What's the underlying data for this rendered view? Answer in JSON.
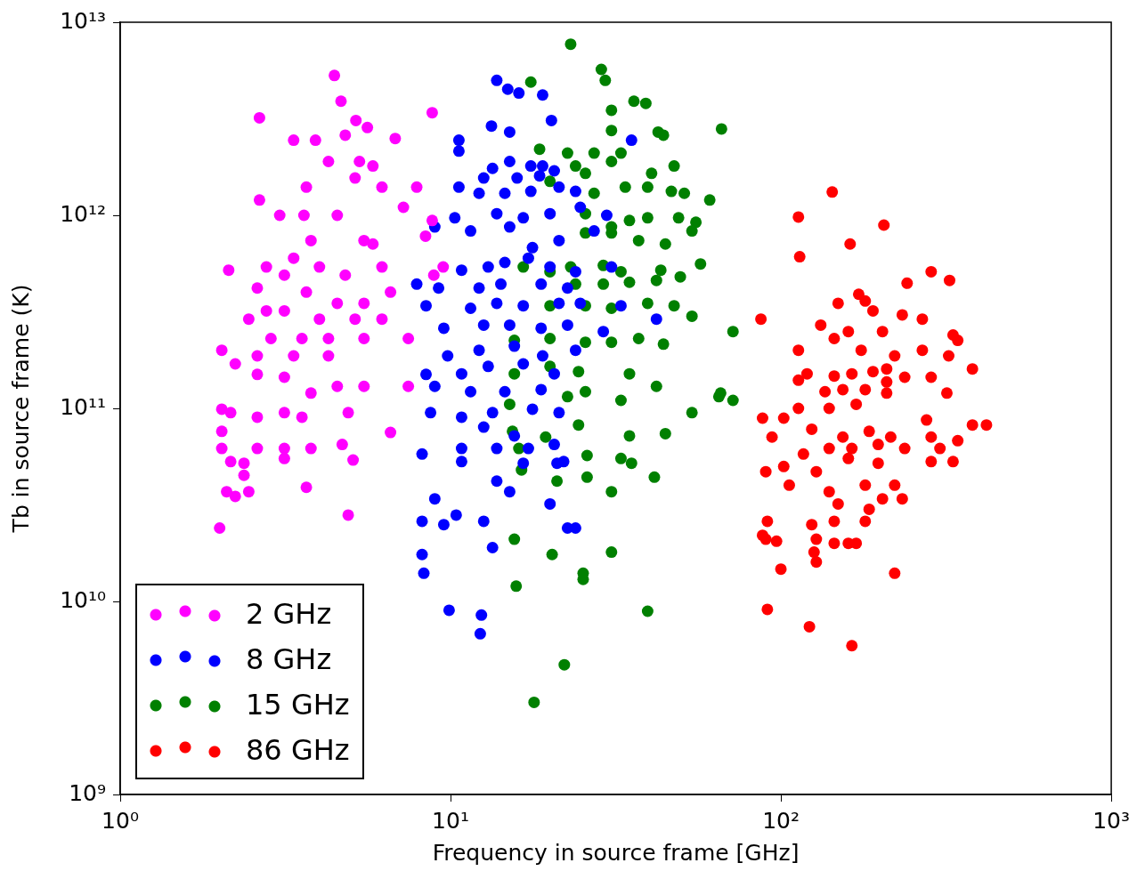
{
  "chart_data": {
    "type": "scatter",
    "xlabel": "Frequency in source frame [GHz]",
    "ylabel": "Tb in source frame (K)",
    "log": "xy",
    "grid": false,
    "legend": "bottom left",
    "marker": "circle",
    "xlim": [
      1,
      1000
    ],
    "xticks": [
      {
        "value": 1,
        "label": "10⁰"
      },
      {
        "value": 10,
        "label": "10¹"
      },
      {
        "value": 100,
        "label": "10²"
      },
      {
        "value": 1000,
        "label": "10³"
      }
    ],
    "ylim": [
      1000000000.0,
      10000000000000.0
    ],
    "yticks": [
      {
        "value": 1000000000.0,
        "label": "10⁹"
      },
      {
        "value": 10000000000.0,
        "label": "10¹⁰"
      },
      {
        "value": 100000000000.0,
        "label": "10¹¹"
      },
      {
        "value": 1000000000000.0,
        "label": "10¹²"
      },
      {
        "value": 10000000000000.0,
        "label": "10¹³"
      }
    ],
    "series": [
      {
        "name": "2 GHz",
        "color": "#ff00ff",
        "x": [
          4.45,
          2.64,
          3.35,
          3.9,
          4.66,
          5.17,
          4.8,
          6.8,
          8.8,
          5.6,
          5.3,
          5.82,
          5.14,
          4.27,
          3.66,
          6.2,
          7.9,
          7.2,
          2.64,
          2.13,
          3.04,
          3.6,
          4.54,
          5.47,
          5.82,
          3.78,
          3.35,
          2.77,
          3.14,
          4.01,
          4.8,
          6.2,
          2.6,
          3.66,
          4.54,
          5.47,
          6.58,
          8.9,
          2.77,
          3.14,
          4.01,
          5.14,
          6.2,
          2.45,
          2.86,
          3.55,
          4.27,
          5.47,
          7.45,
          2.6,
          3.35,
          4.27,
          2.03,
          2.23,
          2.6,
          3.14,
          3.78,
          4.54,
          5.47,
          7.45,
          2.03,
          2.16,
          3.14,
          3.55,
          4.9,
          2.03,
          2.6,
          2.03,
          2.6,
          3.14,
          3.78,
          4.7,
          6.58,
          2.16,
          2.37,
          3.14,
          5.07,
          3.66,
          2.37,
          2.1,
          2.23,
          2.45,
          2.0,
          4.9,
          8.8,
          8.4,
          9.5
        ],
        "values": [
          5300000000000.0,
          3200000000000.0,
          2450000000000.0,
          2450000000000.0,
          3900000000000.0,
          3100000000000.0,
          2600000000000.0,
          2500000000000.0,
          3400000000000.0,
          2850000000000.0,
          1900000000000.0,
          1800000000000.0,
          1560000000000.0,
          1900000000000.0,
          1400000000000.0,
          1400000000000.0,
          1400000000000.0,
          1100000000000.0,
          1200000000000.0,
          520000000000.0,
          1000000000000.0,
          1000000000000.0,
          1000000000000.0,
          740000000000.0,
          710000000000.0,
          740000000000.0,
          600000000000.0,
          540000000000.0,
          490000000000.0,
          540000000000.0,
          490000000000.0,
          540000000000.0,
          420000000000.0,
          400000000000.0,
          350000000000.0,
          350000000000.0,
          400000000000.0,
          490000000000.0,
          320000000000.0,
          320000000000.0,
          290000000000.0,
          290000000000.0,
          290000000000.0,
          290000000000.0,
          230000000000.0,
          230000000000.0,
          230000000000.0,
          230000000000.0,
          230000000000.0,
          187000000000.0,
          187000000000.0,
          187000000000.0,
          200000000000.0,
          170000000000.0,
          150000000000.0,
          145000000000.0,
          120000000000.0,
          130000000000.0,
          130000000000.0,
          130000000000.0,
          99000000000.0,
          95000000000.0,
          95000000000.0,
          90000000000.0,
          95000000000.0,
          76000000000.0,
          90000000000.0,
          62000000000.0,
          62000000000.0,
          62000000000.0,
          62000000000.0,
          65000000000.0,
          75000000000.0,
          53000000000.0,
          52000000000.0,
          55000000000.0,
          54000000000.0,
          39000000000.0,
          45000000000.0,
          37000000000.0,
          35000000000.0,
          37000000000.0,
          24000000000.0,
          28000000000.0,
          940000000000.0,
          780000000000.0,
          540000000000.0
        ]
      },
      {
        "name": "8 GHz",
        "color": "#0000ff",
        "x": [
          13.8,
          14.9,
          16.1,
          19.0,
          20.2,
          13.3,
          15.1,
          10.6,
          10.6,
          13.4,
          15.1,
          17.5,
          19.0,
          20.6,
          12.6,
          15.9,
          18.6,
          10.6,
          12.2,
          14.6,
          17.5,
          21.3,
          23.9,
          29.7,
          35.3,
          10.3,
          13.8,
          16.6,
          20.0,
          24.7,
          8.96,
          11.5,
          15.1,
          17.7,
          21.3,
          27.2,
          10.8,
          13.0,
          14.6,
          17.2,
          20.0,
          23.9,
          30.7,
          7.9,
          9.2,
          12.2,
          14.2,
          18.8,
          22.6,
          8.43,
          11.5,
          13.8,
          16.6,
          21.3,
          24.7,
          32.8,
          42.0,
          9.54,
          12.6,
          15.1,
          18.8,
          22.6,
          29.0,
          9.8,
          12.2,
          15.6,
          19.0,
          23.9,
          8.43,
          10.8,
          13.0,
          16.6,
          20.6,
          8.96,
          11.5,
          14.6,
          18.8,
          8.7,
          10.8,
          13.4,
          17.7,
          21.3,
          12.6,
          15.6,
          10.8,
          13.8,
          17.2,
          20.6,
          22.0,
          8.2,
          10.8,
          16.6,
          21.0,
          13.8,
          15.1,
          8.96,
          8.2,
          10.4,
          9.54,
          12.6,
          13.4,
          20.0,
          22.6,
          23.9,
          8.2,
          8.3,
          9.9,
          12.4,
          12.3
        ],
        "values": [
          5000000000000.0,
          4500000000000.0,
          4300000000000.0,
          4200000000000.0,
          3100000000000.0,
          2900000000000.0,
          2700000000000.0,
          2450000000000.0,
          2150000000000.0,
          1750000000000.0,
          1900000000000.0,
          1800000000000.0,
          1800000000000.0,
          1700000000000.0,
          1560000000000.0,
          1560000000000.0,
          1600000000000.0,
          1400000000000.0,
          1300000000000.0,
          1300000000000.0,
          1330000000000.0,
          1400000000000.0,
          1330000000000.0,
          1000000000000.0,
          2450000000000.0,
          970000000000.0,
          1020000000000.0,
          970000000000.0,
          1020000000000.0,
          1100000000000.0,
          870000000000.0,
          830000000000.0,
          870000000000.0,
          680000000000.0,
          740000000000.0,
          830000000000.0,
          520000000000.0,
          540000000000.0,
          570000000000.0,
          600000000000.0,
          540000000000.0,
          510000000000.0,
          540000000000.0,
          440000000000.0,
          420000000000.0,
          420000000000.0,
          440000000000.0,
          440000000000.0,
          420000000000.0,
          340000000000.0,
          330000000000.0,
          350000000000.0,
          340000000000.0,
          350000000000.0,
          350000000000.0,
          340000000000.0,
          290000000000.0,
          260000000000.0,
          270000000000.0,
          270000000000.0,
          260000000000.0,
          270000000000.0,
          250000000000.0,
          187000000000.0,
          200000000000.0,
          210000000000.0,
          187000000000.0,
          200000000000.0,
          150000000000.0,
          151000000000.0,
          165000000000.0,
          170000000000.0,
          151000000000.0,
          130000000000.0,
          122000000000.0,
          122000000000.0,
          125000000000.0,
          95000000000.0,
          90000000000.0,
          95000000000.0,
          99000000000.0,
          95000000000.0,
          80000000000.0,
          72000000000.0,
          62000000000.0,
          62000000000.0,
          62000000000.0,
          65000000000.0,
          53000000000.0,
          58000000000.0,
          53000000000.0,
          52000000000.0,
          52000000000.0,
          42000000000.0,
          37000000000.0,
          34000000000.0,
          26000000000.0,
          28000000000.0,
          25000000000.0,
          26000000000.0,
          19000000000.0,
          32000000000.0,
          24000000000.0,
          24000000000.0,
          17500000000.0,
          14000000000.0,
          9000000000.0,
          8500000000.0,
          6800000000.0
        ]
      },
      {
        "name": "15 GHz",
        "color": "#008000",
        "x": [
          23.1,
          28.6,
          29.4,
          17.5,
          30.7,
          30.7,
          35.9,
          39.0,
          42.5,
          44.1,
          18.6,
          22.6,
          23.9,
          27.2,
          30.7,
          32.8,
          47.5,
          40.6,
          25.6,
          20.0,
          27.2,
          33.8,
          39.5,
          46.6,
          51.0,
          60.9,
          66.1,
          25.6,
          30.7,
          34.8,
          39.5,
          49.0,
          55.3,
          25.6,
          30.7,
          37.1,
          44.7,
          53.8,
          16.6,
          20.0,
          23.1,
          29.0,
          32.8,
          43.3,
          57.1,
          23.9,
          29.0,
          34.8,
          42.0,
          49.6,
          20.0,
          25.6,
          30.7,
          39.5,
          47.5,
          53.8,
          71.6,
          15.6,
          20.0,
          25.6,
          30.7,
          37.1,
          44.1,
          64.9,
          65.7,
          71.6,
          53.8,
          15.6,
          20.0,
          24.4,
          34.8,
          42.0,
          15.1,
          22.6,
          25.6,
          32.8,
          44.7,
          15.4,
          19.4,
          24.4,
          34.8,
          16.1,
          25.9,
          32.8,
          35.3,
          16.4,
          21.0,
          25.9,
          41.4,
          30.7,
          15.6,
          15.8,
          20.3,
          25.2,
          30.7,
          25.2,
          39.5,
          22.1,
          17.9
        ],
        "values": [
          7700000000000.0,
          5700000000000.0,
          5000000000000.0,
          4900000000000.0,
          3500000000000.0,
          2750000000000.0,
          3900000000000.0,
          3800000000000.0,
          2700000000000.0,
          2600000000000.0,
          2200000000000.0,
          2100000000000.0,
          1800000000000.0,
          2100000000000.0,
          1900000000000.0,
          2100000000000.0,
          1800000000000.0,
          1650000000000.0,
          1650000000000.0,
          1500000000000.0,
          1300000000000.0,
          1400000000000.0,
          1400000000000.0,
          1330000000000.0,
          1300000000000.0,
          1200000000000.0,
          2800000000000.0,
          1020000000000.0,
          870000000000.0,
          940000000000.0,
          970000000000.0,
          970000000000.0,
          920000000000.0,
          810000000000.0,
          810000000000.0,
          740000000000.0,
          710000000000.0,
          830000000000.0,
          540000000000.0,
          510000000000.0,
          540000000000.0,
          550000000000.0,
          510000000000.0,
          520000000000.0,
          560000000000.0,
          440000000000.0,
          440000000000.0,
          450000000000.0,
          460000000000.0,
          480000000000.0,
          340000000000.0,
          340000000000.0,
          330000000000.0,
          350000000000.0,
          340000000000.0,
          300000000000.0,
          250000000000.0,
          225000000000.0,
          230000000000.0,
          220000000000.0,
          220000000000.0,
          230000000000.0,
          215000000000.0,
          115000000000.0,
          120000000000.0,
          110000000000.0,
          95000000000.0,
          151000000000.0,
          165000000000.0,
          155000000000.0,
          151000000000.0,
          130000000000.0,
          105000000000.0,
          115000000000.0,
          122000000000.0,
          110000000000.0,
          74000000000.0,
          76000000000.0,
          71000000000.0,
          82000000000.0,
          72000000000.0,
          62000000000.0,
          57000000000.0,
          55000000000.0,
          52000000000.0,
          48000000000.0,
          42000000000.0,
          44000000000.0,
          44000000000.0,
          37000000000.0,
          21000000000.0,
          12000000000.0,
          17500000000.0,
          14000000000.0,
          18000000000.0,
          13000000000.0,
          8900000000.0,
          4700000000.0,
          3000000000.0
        ]
      },
      {
        "name": "86 GHz",
        "color": "#ff0000",
        "x": [
          143,
          113,
          162,
          205,
          114,
          87,
          285,
          241,
          324,
          172,
          180,
          149,
          190,
          233,
          268,
          132,
          160,
          203,
          332,
          343,
          113,
          145,
          175,
          221,
          268,
          322,
          120,
          145,
          164,
          190,
          209,
          237,
          285,
          113,
          136,
          154,
          180,
          209,
          318,
          380,
          113,
          140,
          169,
          209,
          276,
          88,
          102,
          124,
          154,
          185,
          215,
          285,
          343,
          380,
          419,
          94,
          117,
          140,
          164,
          197,
          237,
          303,
          90,
          102,
          128,
          160,
          197,
          285,
          332,
          106,
          140,
          180,
          221,
          88,
          91,
          90,
          97,
          124,
          149,
          185,
          203,
          233,
          128,
          145,
          160,
          169,
          126,
          128,
          145,
          180,
          100,
          221,
          91,
          122,
          164
        ],
        "values": [
          1320000000000.0,
          980000000000.0,
          710000000000.0,
          890000000000.0,
          610000000000.0,
          290000000000.0,
          510000000000.0,
          445000000000.0,
          460000000000.0,
          390000000000.0,
          360000000000.0,
          350000000000.0,
          320000000000.0,
          305000000000.0,
          290000000000.0,
          270000000000.0,
          250000000000.0,
          250000000000.0,
          240000000000.0,
          225000000000.0,
          200000000000.0,
          230000000000.0,
          200000000000.0,
          187000000000.0,
          200000000000.0,
          187000000000.0,
          151000000000.0,
          147000000000.0,
          151000000000.0,
          155000000000.0,
          160000000000.0,
          145000000000.0,
          145000000000.0,
          140000000000.0,
          122000000000.0,
          125000000000.0,
          125000000000.0,
          137000000000.0,
          120000000000.0,
          160000000000.0,
          100000000000.0,
          100000000000.0,
          105000000000.0,
          120000000000.0,
          87000000000.0,
          89000000000.0,
          89000000000.0,
          78000000000.0,
          71000000000.0,
          76000000000.0,
          71000000000.0,
          71000000000.0,
          68000000000.0,
          82000000000.0,
          82000000000.0,
          71000000000.0,
          58000000000.0,
          62000000000.0,
          62000000000.0,
          65000000000.0,
          62000000000.0,
          62000000000.0,
          47000000000.0,
          50000000000.0,
          47000000000.0,
          55000000000.0,
          52000000000.0,
          53000000000.0,
          53000000000.0,
          40000000000.0,
          37000000000.0,
          40000000000.0,
          40000000000.0,
          22000000000.0,
          26000000000.0,
          21000000000.0,
          20500000000.0,
          25000000000.0,
          32000000000.0,
          30000000000.0,
          34000000000.0,
          34000000000.0,
          21000000000.0,
          20000000000.0,
          20000000000.0,
          20000000000.0,
          18000000000.0,
          16000000000.0,
          26000000000.0,
          26000000000.0,
          14700000000.0,
          14000000000.0,
          9100000000.0,
          7400000000.0,
          5900000000.0
        ]
      }
    ]
  }
}
